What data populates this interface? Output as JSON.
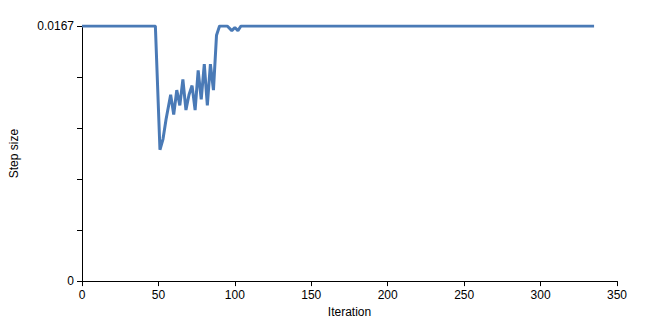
{
  "chart_data": {
    "type": "line",
    "x_label": "Iteration",
    "y_label": "Step size",
    "x": [
      0,
      48,
      51,
      53,
      55,
      58,
      60,
      62,
      64,
      66,
      68,
      70,
      72,
      74,
      76,
      78,
      80,
      82,
      84,
      86,
      88,
      90,
      95,
      98,
      100,
      102,
      104,
      335
    ],
    "values": [
      0.0167,
      0.0167,
      0.0086,
      0.0093,
      0.0106,
      0.0122,
      0.0109,
      0.0125,
      0.0115,
      0.0132,
      0.0112,
      0.0122,
      0.0128,
      0.0112,
      0.0138,
      0.0119,
      0.0142,
      0.0115,
      0.0142,
      0.0125,
      0.0161,
      0.0167,
      0.0167,
      0.0164,
      0.0166,
      0.0164,
      0.0167,
      0.0167
    ],
    "color": "#4a7ab6",
    "xlim": [
      0,
      350
    ],
    "xticks": [
      0,
      50,
      100,
      150,
      200,
      250,
      300,
      350
    ],
    "ylim": [
      0,
      0.0167
    ],
    "yticks": [
      0,
      0.0167
    ],
    "grid": false
  }
}
